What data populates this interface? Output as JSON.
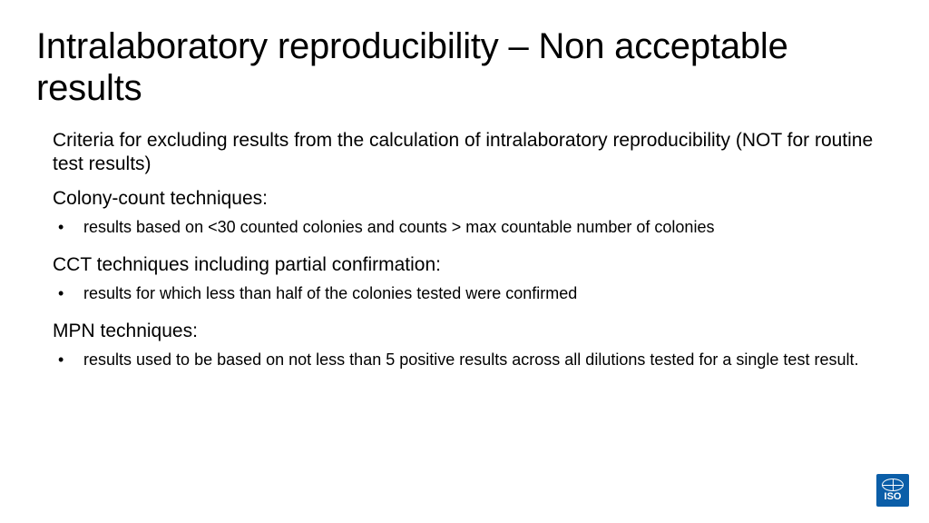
{
  "title": "Intralaboratory reproducibility – Non acceptable results",
  "intro": "Criteria for excluding results from the calculation of intralaboratory reproducibility (NOT for routine test results)",
  "sections": [
    {
      "heading": "Colony-count techniques:",
      "items": [
        "results based on <30 counted colonies and counts > max countable number of colonies"
      ]
    },
    {
      "heading": "CCT techniques including partial confirmation:",
      "items": [
        "results for which less than half of the colonies tested were confirmed"
      ]
    },
    {
      "heading": "MPN techniques:",
      "items": [
        "results used to be based on not less than 5 positive results across all dilutions tested for a single test result."
      ]
    }
  ],
  "logo": {
    "label": "ISO",
    "bg": "#0b5ea8"
  }
}
